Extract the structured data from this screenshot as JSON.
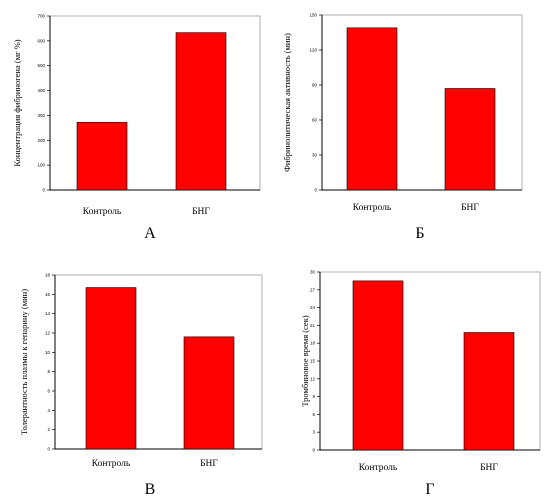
{
  "chart_data": [
    {
      "type": "bar",
      "panel_label": "А",
      "categories": [
        "Контроль",
        "БНГ"
      ],
      "values": [
        272,
        633
      ],
      "ylabel": "Концентрация фибриногена (мг %)",
      "ylim": [
        0,
        700
      ],
      "yticks": [
        0,
        100,
        200,
        300,
        400,
        500,
        600,
        700
      ],
      "grid": false,
      "bar_color": "#ff0000"
    },
    {
      "type": "bar",
      "panel_label": "Б",
      "categories": [
        "Контроль",
        "БНГ"
      ],
      "values": [
        139,
        87
      ],
      "ylabel": "Фибринолитическая активность (мин)",
      "ylim": [
        0,
        150
      ],
      "yticks": [
        0,
        30,
        60,
        90,
        120,
        150
      ],
      "grid": false,
      "bar_color": "#ff0000"
    },
    {
      "type": "bar",
      "panel_label": "В",
      "categories": [
        "Контроль",
        "БНГ"
      ],
      "values": [
        16.7,
        11.6
      ],
      "ylabel": "Толерантность плазмы к гепарину (мин)",
      "ylim": [
        0,
        18
      ],
      "yticks": [
        "0",
        "2",
        "4",
        "6",
        "8",
        "10",
        "12",
        "14",
        "16",
        "18"
      ],
      "grid": false,
      "bar_color": "#ff0000"
    },
    {
      "type": "bar",
      "panel_label": "Г",
      "categories": [
        "Контроль",
        "БНГ"
      ],
      "values": [
        28.5,
        19.8
      ],
      "ylabel": "Тромбиновое время (сек)",
      "ylim": [
        0,
        30
      ],
      "yticks": [
        "0",
        "3",
        "6",
        "9",
        "12",
        "15",
        "18",
        "21",
        "24",
        "27",
        "30"
      ],
      "grid": false,
      "bar_color": "#ff0000"
    }
  ]
}
